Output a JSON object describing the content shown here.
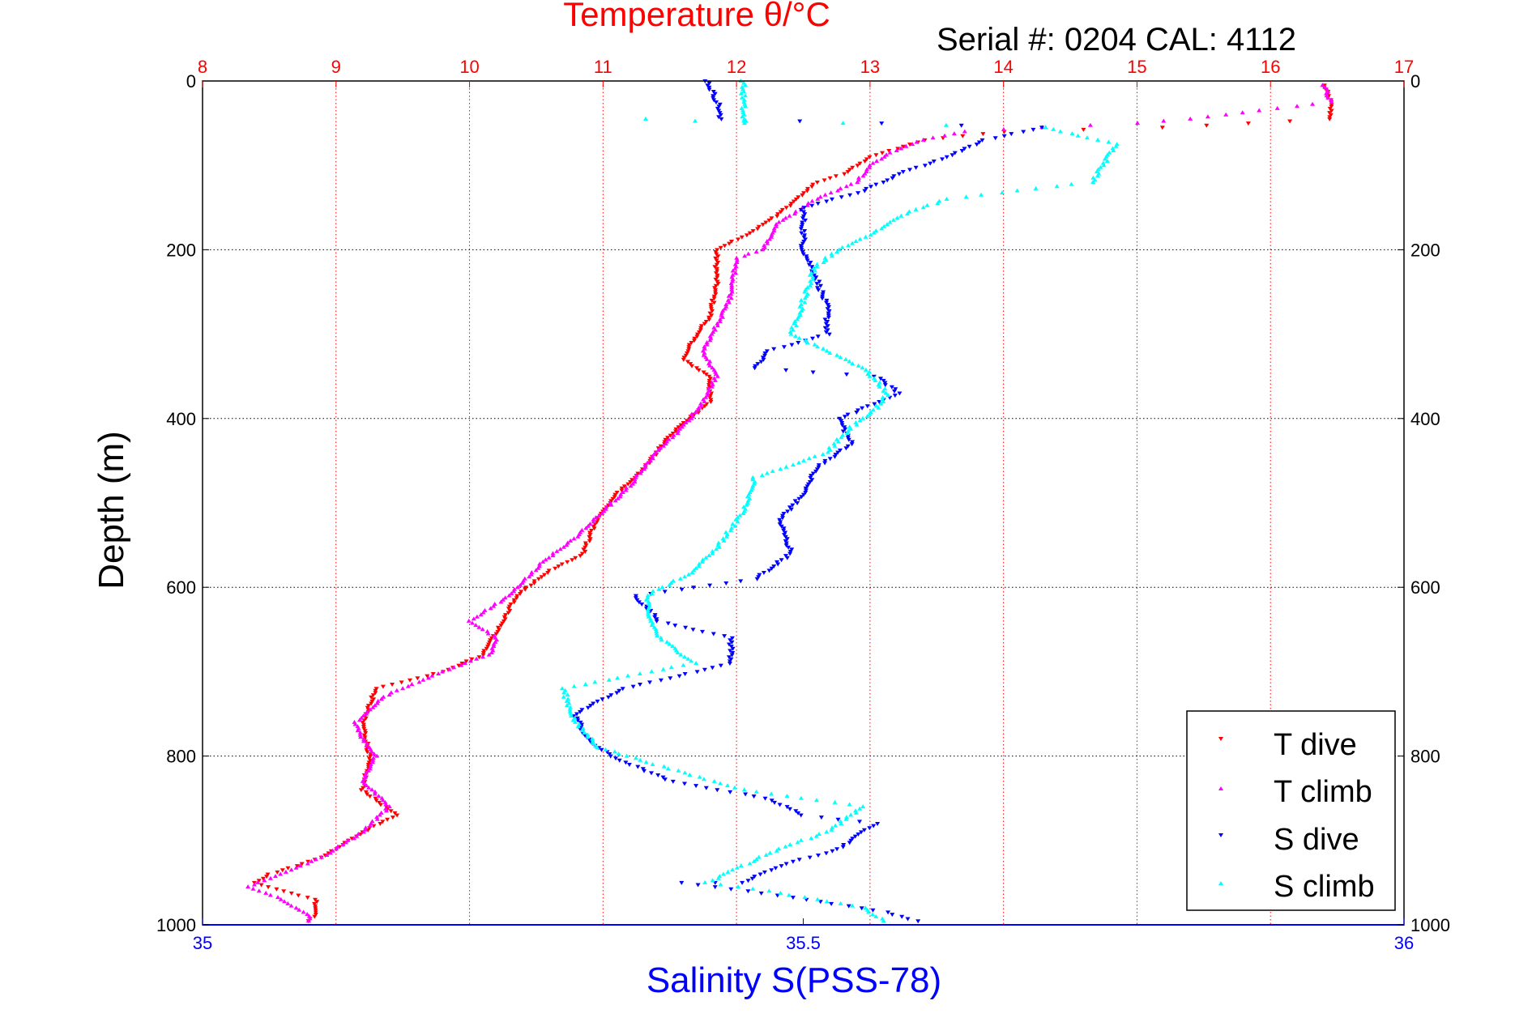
{
  "chart_data": {
    "type": "scatter",
    "title": "Temperature θ/°C",
    "subtitle": "Serial #: 0204  CAL: 4112",
    "xlabel": "Salinity S(PSS-78)",
    "ylabel": "Depth (m)",
    "top_axis": {
      "label": "Temperature θ/°C",
      "range": [
        8,
        17
      ],
      "ticks": [
        "8",
        "9",
        "10",
        "11",
        "12",
        "13",
        "14",
        "15",
        "16",
        "17"
      ]
    },
    "bottom_axis": {
      "label": "Salinity S(PSS-78)",
      "range": [
        35,
        36
      ],
      "ticks": [
        "35",
        "35.5",
        "36"
      ]
    },
    "y_axis": {
      "label": "Depth (m)",
      "range": [
        0,
        1000
      ],
      "reversed": true,
      "ticks": [
        "0",
        "200",
        "400",
        "600",
        "800",
        "1000"
      ]
    },
    "grid": true,
    "legend_position": "bottom-right",
    "colors": {
      "t_dive": "#ff0000",
      "t_climb": "#ff00ff",
      "s_dive": "#0000ff",
      "s_climb": "#00ffff",
      "temp_axis": "#ff0000",
      "sal_axis": "#0000ff"
    },
    "series": [
      {
        "name": "T dive",
        "axis": "temperature",
        "marker": "triangle-down",
        "points": [
          [
            16.4,
            5
          ],
          [
            16.45,
            25
          ],
          [
            16.45,
            45
          ],
          [
            15.2,
            55
          ],
          [
            14.0,
            60
          ],
          [
            13.4,
            70
          ],
          [
            13.0,
            90
          ],
          [
            12.8,
            110
          ],
          [
            12.6,
            120
          ],
          [
            12.45,
            140
          ],
          [
            12.3,
            160
          ],
          [
            12.1,
            180
          ],
          [
            11.85,
            200
          ],
          [
            11.85,
            240
          ],
          [
            11.8,
            280
          ],
          [
            11.7,
            300
          ],
          [
            11.6,
            330
          ],
          [
            11.8,
            350
          ],
          [
            11.8,
            380
          ],
          [
            11.65,
            400
          ],
          [
            11.5,
            420
          ],
          [
            11.3,
            460
          ],
          [
            11.1,
            490
          ],
          [
            10.95,
            520
          ],
          [
            10.85,
            560
          ],
          [
            10.6,
            580
          ],
          [
            10.35,
            610
          ],
          [
            10.25,
            640
          ],
          [
            10.1,
            680
          ],
          [
            9.8,
            700
          ],
          [
            9.3,
            720
          ],
          [
            9.2,
            760
          ],
          [
            9.25,
            800
          ],
          [
            9.2,
            840
          ],
          [
            9.45,
            870
          ],
          [
            9.2,
            890
          ],
          [
            8.9,
            920
          ],
          [
            8.5,
            940
          ],
          [
            8.4,
            950
          ],
          [
            8.6,
            960
          ],
          [
            8.85,
            970
          ],
          [
            8.85,
            990
          ],
          [
            8.75,
            998
          ]
        ]
      },
      {
        "name": "T climb",
        "axis": "temperature",
        "marker": "triangle-up",
        "points": [
          [
            16.4,
            5
          ],
          [
            16.45,
            25
          ],
          [
            15.4,
            45
          ],
          [
            15.0,
            50
          ],
          [
            14.3,
            55
          ],
          [
            13.7,
            60
          ],
          [
            13.4,
            70
          ],
          [
            13.15,
            85
          ],
          [
            13.0,
            100
          ],
          [
            12.9,
            120
          ],
          [
            12.6,
            140
          ],
          [
            12.3,
            170
          ],
          [
            12.2,
            200
          ],
          [
            12.0,
            210
          ],
          [
            11.95,
            260
          ],
          [
            11.85,
            290
          ],
          [
            11.75,
            320
          ],
          [
            11.85,
            350
          ],
          [
            11.75,
            380
          ],
          [
            11.6,
            410
          ],
          [
            11.4,
            440
          ],
          [
            11.2,
            480
          ],
          [
            11.0,
            510
          ],
          [
            10.8,
            540
          ],
          [
            10.55,
            570
          ],
          [
            10.3,
            610
          ],
          [
            10.0,
            640
          ],
          [
            10.2,
            660
          ],
          [
            10.15,
            680
          ],
          [
            9.8,
            700
          ],
          [
            9.35,
            730
          ],
          [
            9.15,
            760
          ],
          [
            9.2,
            780
          ],
          [
            9.3,
            800
          ],
          [
            9.2,
            830
          ],
          [
            9.4,
            860
          ],
          [
            9.2,
            890
          ],
          [
            8.9,
            920
          ],
          [
            8.5,
            945
          ],
          [
            8.35,
            955
          ],
          [
            8.6,
            970
          ],
          [
            8.8,
            990
          ],
          [
            8.8,
            998
          ]
        ]
      },
      {
        "name": "S dive",
        "axis": "salinity",
        "marker": "triangle-down",
        "points": [
          [
            35.42,
            0
          ],
          [
            35.43,
            30
          ],
          [
            35.43,
            45
          ],
          [
            35.7,
            55
          ],
          [
            35.65,
            70
          ],
          [
            35.62,
            90
          ],
          [
            35.58,
            110
          ],
          [
            35.55,
            130
          ],
          [
            35.5,
            150
          ],
          [
            35.5,
            170
          ],
          [
            35.5,
            200
          ],
          [
            35.51,
            230
          ],
          [
            35.52,
            270
          ],
          [
            35.52,
            300
          ],
          [
            35.47,
            320
          ],
          [
            35.46,
            340
          ],
          [
            35.56,
            350
          ],
          [
            35.58,
            370
          ],
          [
            35.53,
            400
          ],
          [
            35.54,
            430
          ],
          [
            35.51,
            460
          ],
          [
            35.5,
            490
          ],
          [
            35.48,
            520
          ],
          [
            35.49,
            560
          ],
          [
            35.46,
            590
          ],
          [
            35.36,
            610
          ],
          [
            35.38,
            640
          ],
          [
            35.44,
            660
          ],
          [
            35.44,
            690
          ],
          [
            35.35,
            720
          ],
          [
            35.31,
            750
          ],
          [
            35.32,
            780
          ],
          [
            35.34,
            800
          ],
          [
            35.39,
            830
          ],
          [
            35.47,
            850
          ],
          [
            35.5,
            870
          ],
          [
            35.56,
            880
          ],
          [
            35.53,
            910
          ],
          [
            35.48,
            930
          ],
          [
            35.45,
            950
          ],
          [
            35.4,
            950
          ],
          [
            35.48,
            965
          ],
          [
            35.57,
            985
          ],
          [
            35.6,
            998
          ]
        ]
      },
      {
        "name": "S climb",
        "axis": "salinity",
        "marker": "triangle-up",
        "points": [
          [
            35.45,
            0
          ],
          [
            35.45,
            30
          ],
          [
            35.45,
            50
          ],
          [
            35.37,
            45
          ],
          [
            35.7,
            55
          ],
          [
            35.76,
            75
          ],
          [
            35.75,
            100
          ],
          [
            35.74,
            120
          ],
          [
            35.62,
            140
          ],
          [
            35.58,
            160
          ],
          [
            35.56,
            180
          ],
          [
            35.53,
            200
          ],
          [
            35.51,
            220
          ],
          [
            35.5,
            260
          ],
          [
            35.49,
            300
          ],
          [
            35.52,
            320
          ],
          [
            35.55,
            340
          ],
          [
            35.57,
            370
          ],
          [
            35.56,
            390
          ],
          [
            35.54,
            410
          ],
          [
            35.52,
            440
          ],
          [
            35.46,
            470
          ],
          [
            35.45,
            510
          ],
          [
            35.43,
            550
          ],
          [
            35.41,
            580
          ],
          [
            35.37,
            610
          ],
          [
            35.37,
            630
          ],
          [
            35.38,
            660
          ],
          [
            35.41,
            690
          ],
          [
            35.3,
            720
          ],
          [
            35.31,
            760
          ],
          [
            35.33,
            790
          ],
          [
            35.4,
            820
          ],
          [
            35.45,
            840
          ],
          [
            35.55,
            860
          ],
          [
            35.52,
            890
          ],
          [
            35.48,
            910
          ],
          [
            35.45,
            930
          ],
          [
            35.42,
            950
          ],
          [
            35.47,
            960
          ],
          [
            35.55,
            980
          ],
          [
            35.57,
            998
          ]
        ]
      }
    ]
  }
}
